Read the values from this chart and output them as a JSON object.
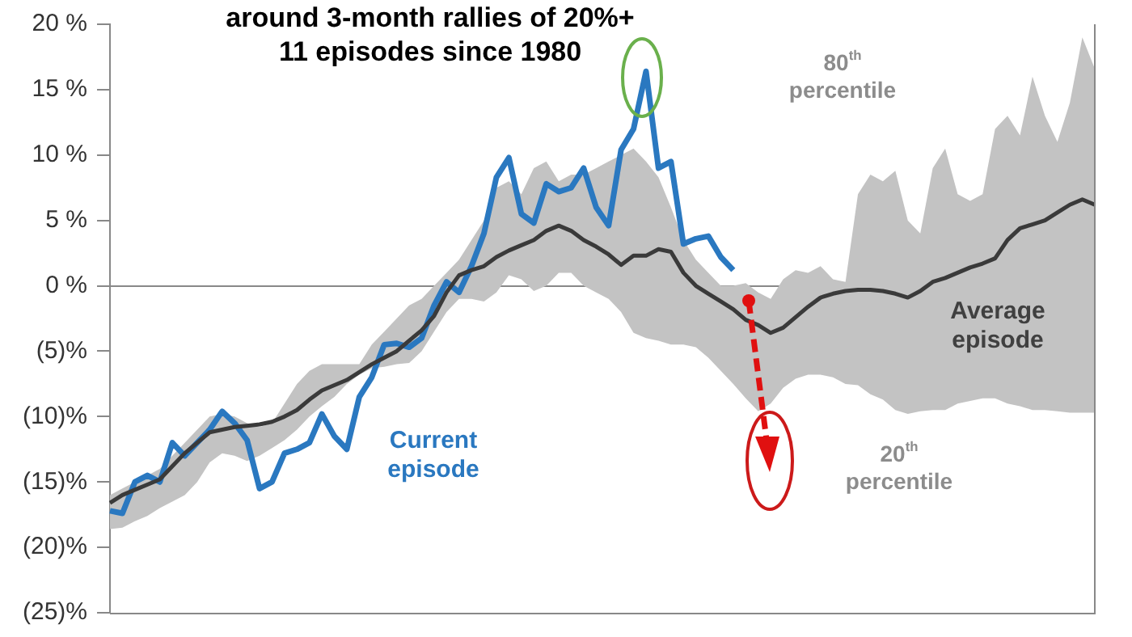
{
  "chart_data": {
    "type": "line",
    "title": "around 3-month rallies of 20%+",
    "subtitle": "11 episodes since 1980",
    "categories": [
      null,
      null,
      null,
      null,
      null,
      null,
      null,
      null,
      null,
      null,
      null,
      null,
      null,
      null,
      null,
      null,
      null,
      null,
      null,
      null,
      null,
      null,
      null,
      null,
      null,
      null,
      null,
      null,
      null,
      null,
      null,
      null,
      null,
      null,
      null,
      null,
      null,
      null,
      null,
      null,
      null,
      null,
      null,
      null,
      null,
      null,
      null,
      null,
      null,
      null,
      null,
      null,
      null,
      null,
      null,
      null,
      null,
      null,
      null,
      null,
      null,
      null,
      null,
      null,
      null,
      null,
      null,
      null,
      null,
      null,
      null,
      null,
      null,
      null,
      null,
      null,
      null,
      null,
      null,
      null
    ],
    "series": [
      {
        "name": "Average episode",
        "color": "#3a3a3a",
        "values": [
          -16.6,
          -16,
          -15.6,
          -15.2,
          -14.8,
          -13.8,
          -12.8,
          -12,
          -11.2,
          -11,
          -10.8,
          -10.7,
          -10.6,
          -10.4,
          -10,
          -9.5,
          -8.7,
          -8,
          -7.6,
          -7.2,
          -6.6,
          -6,
          -5.5,
          -5,
          -4.2,
          -3.4,
          -2.3,
          -0.5,
          0.8,
          1.2,
          1.5,
          2.2,
          2.7,
          3.1,
          3.5,
          4.2,
          4.6,
          4.2,
          3.5,
          3,
          2.4,
          1.6,
          2.3,
          2.3,
          2.8,
          2.6,
          1,
          0,
          -0.6,
          -1.2,
          -1.8,
          -2.6,
          -3,
          -3.6,
          -3.2,
          -2.4,
          -1.6,
          -0.9,
          -0.6,
          -0.4,
          -0.3,
          -0.3,
          -0.4,
          -0.6,
          -0.9,
          -0.4,
          0.3,
          0.6,
          1,
          1.4,
          1.7,
          2.1,
          3.5,
          4.4,
          4.7,
          5,
          5.6,
          6.2,
          6.6,
          6.2
        ],
        "lower": [
          -18.6,
          -18.5,
          -18,
          -17.6,
          -17,
          -16.5,
          -16,
          -15,
          -13.5,
          -12.8,
          -13,
          -13.4,
          -13,
          -12.4,
          -11.8,
          -11,
          -10,
          -9.2,
          -8.5,
          -7.5,
          -6.8,
          -6.3,
          -6.2,
          -6,
          -5.9,
          -5,
          -3.5,
          -2,
          -1,
          -1,
          -1.2,
          -0.5,
          0.8,
          0.5,
          -0.4,
          0,
          1,
          1,
          0,
          -0.5,
          -1,
          -2,
          -3.6,
          -4,
          -4.2,
          -4.5,
          -4.5,
          -4.7,
          -5.5,
          -6.5,
          -7.5,
          -8.6,
          -9.6,
          -9,
          -7.8,
          -7.1,
          -6.8,
          -6.8,
          -7,
          -7.5,
          -7.6,
          -8.3,
          -8.7,
          -9.5,
          -9.8,
          -9.6,
          -9.5,
          -9.5,
          -9,
          -8.8,
          -8.6,
          -8.6,
          -9,
          -9.2,
          -9.5,
          -9.5,
          -9.6,
          -9.7,
          -9.7,
          -9.7
        ],
        "upper": [
          -16,
          -15.5,
          -15,
          -14.5,
          -14,
          -13,
          -12,
          -11,
          -10,
          -9.8,
          -10,
          -10.5,
          -10.8,
          -10.5,
          -9,
          -7.5,
          -6.5,
          -6,
          -6,
          -6,
          -6,
          -4.5,
          -3.5,
          -2.5,
          -1.5,
          -1,
          0,
          1,
          2,
          3.5,
          5,
          7.5,
          8,
          7,
          9,
          9.5,
          8,
          8.5,
          8.5,
          9,
          9.5,
          10,
          10.5,
          9.5,
          8.3,
          6,
          3.5,
          2,
          1,
          0,
          0,
          0.2,
          -0.5,
          -1,
          0.5,
          1.2,
          1,
          1.5,
          0.5,
          0.3,
          7,
          8.5,
          8,
          8.8,
          5,
          4,
          9,
          10.5,
          7,
          6.5,
          7,
          12,
          13,
          11.5,
          16,
          13,
          11,
          14,
          19,
          16.6
        ]
      },
      {
        "name": "Current episode",
        "color": "#2a78c0",
        "values": [
          -17.2,
          -17.4,
          -15,
          -14.5,
          -15,
          -12,
          -13,
          -12,
          -11,
          -9.6,
          -10.5,
          -11.8,
          -15.5,
          -15,
          -12.8,
          -12.5,
          -12,
          -9.8,
          -11.5,
          -12.5,
          -8.5,
          -7,
          -4.5,
          -4.4,
          -4.7,
          -4,
          -1.5,
          0.3,
          -0.5,
          1.5,
          4,
          8.3,
          9.8,
          5.5,
          4.8,
          7.8,
          7.2,
          7.5,
          9,
          6,
          4.6,
          10.4,
          12,
          16.4,
          9,
          9.5,
          3.2,
          3.6,
          3.8,
          2.2,
          1.2,
          null,
          null,
          null,
          null,
          null,
          null,
          null,
          null,
          null,
          null,
          null,
          null,
          null,
          null,
          null,
          null,
          null,
          null,
          null,
          null,
          null,
          null,
          null,
          null,
          null,
          null,
          null,
          null,
          null
        ]
      }
    ],
    "annotations": [
      "80$^{th}$ percentile",
      "20$^{th}$ percentile"
    ],
    "ylim": [
      -25,
      20
    ],
    "yticks": [
      {
        "value": -25,
        "label": "(25)%"
      },
      {
        "value": -20,
        "label": "(20)%"
      },
      {
        "value": -15,
        "label": "(15)%"
      },
      {
        "value": -10,
        "label": "(10)%"
      },
      {
        "value": -5,
        "label": "(5)%"
      },
      {
        "value": 0,
        "label": "0 %"
      },
      {
        "value": 5,
        "label": "5 %"
      },
      {
        "value": 10,
        "label": "10 %"
      },
      {
        "value": 15,
        "label": "15 %"
      },
      {
        "value": 20,
        "label": "20 %"
      }
    ],
    "tick_labels": "y",
    "legend": false
  }
}
